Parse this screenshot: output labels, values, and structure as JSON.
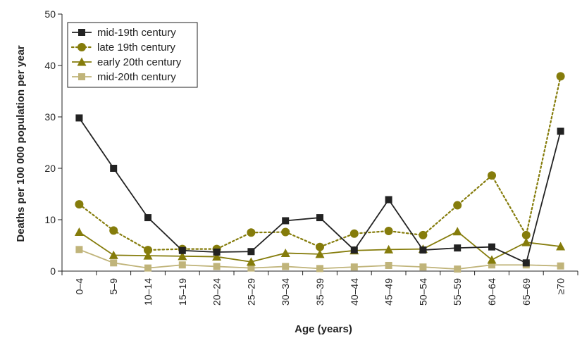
{
  "chart_data": {
    "type": "line",
    "title": "",
    "xlabel": "Age (years)",
    "ylabel": "Deaths per 100 000 population per year",
    "ylim": [
      0,
      50
    ],
    "yticks": [
      "0",
      "10",
      "20",
      "30",
      "40",
      "50"
    ],
    "grid": false,
    "legend_position": "top-left",
    "categories": [
      "0–4",
      "5–9",
      "10–14",
      "15–19",
      "20–24",
      "25–29",
      "30–34",
      "35–39",
      "40–44",
      "45–49",
      "50–54",
      "55–59",
      "60–64",
      "65–69",
      "≥70"
    ],
    "series": [
      {
        "name": "mid-19th century",
        "color": "#222222",
        "marker": "square",
        "line": "solid",
        "values": [
          29.8,
          20.0,
          10.4,
          4.0,
          3.7,
          3.8,
          9.8,
          10.4,
          4.1,
          13.9,
          4.1,
          4.5,
          4.7,
          1.6,
          27.2
        ]
      },
      {
        "name": "late 19th century",
        "color": "#857c0b",
        "marker": "circle",
        "line": "dotted",
        "values": [
          13.0,
          7.9,
          4.1,
          4.3,
          4.3,
          7.5,
          7.6,
          4.7,
          7.3,
          7.8,
          7.0,
          12.8,
          18.6,
          7.0,
          37.9
        ]
      },
      {
        "name": "early 20th century",
        "color": "#857c0b",
        "marker": "triangle",
        "line": "solid",
        "values": [
          7.6,
          3.1,
          3.0,
          2.9,
          2.8,
          1.8,
          3.5,
          3.3,
          4.0,
          4.2,
          4.3,
          7.7,
          2.2,
          5.6,
          4.8
        ]
      },
      {
        "name": "mid-20th century",
        "color": "#c0b47a",
        "marker": "square",
        "line": "solid",
        "values": [
          4.2,
          1.6,
          0.6,
          1.2,
          0.9,
          0.6,
          0.9,
          0.5,
          0.8,
          1.1,
          0.8,
          0.4,
          1.2,
          1.2,
          1.0
        ]
      }
    ]
  }
}
